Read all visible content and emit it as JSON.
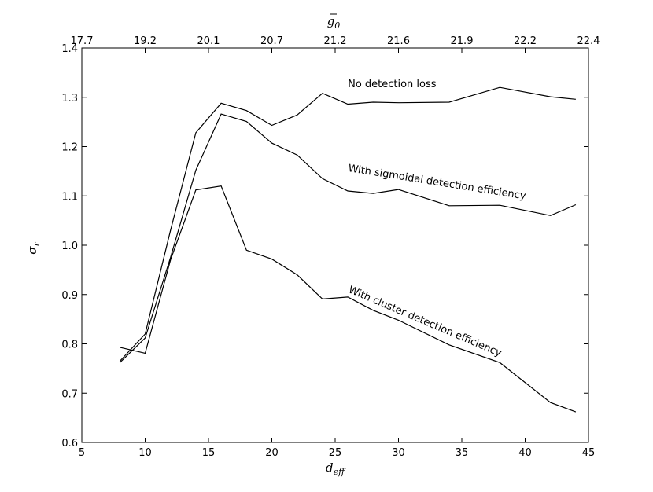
{
  "chart_data": {
    "type": "line",
    "xlabel": "d_eff",
    "ylabel": "σ_r",
    "top_xlabel": "ḡ_0",
    "xlim": [
      5,
      45
    ],
    "ylim": [
      0.6,
      1.4
    ],
    "x_ticks": [
      "5",
      "10",
      "15",
      "20",
      "25",
      "30",
      "35",
      "40",
      "45"
    ],
    "y_ticks": [
      "0.6",
      "0.7",
      "0.8",
      "0.9",
      "1.0",
      "1.1",
      "1.2",
      "1.3",
      "1.4"
    ],
    "top_ticks": [
      {
        "x": 5,
        "label": "17.7"
      },
      {
        "x": 10,
        "label": "19.2"
      },
      {
        "x": 15,
        "label": "20.1"
      },
      {
        "x": 20,
        "label": "20.7"
      },
      {
        "x": 25,
        "label": "21.2"
      },
      {
        "x": 30,
        "label": "21.6"
      },
      {
        "x": 35,
        "label": "21.9"
      },
      {
        "x": 40,
        "label": "22.2"
      },
      {
        "x": 45,
        "label": "22.4"
      }
    ],
    "series": [
      {
        "x": [
          8,
          10,
          12,
          14,
          16,
          18,
          20,
          22,
          24,
          26,
          28,
          30,
          34,
          38,
          42,
          44
        ],
        "values": [
          0.765,
          0.82,
          1.03,
          1.228,
          1.288,
          1.273,
          1.243,
          1.264,
          1.308,
          1.286,
          1.29,
          1.289,
          1.29,
          1.32,
          1.301,
          1.296
        ]
      },
      {
        "x": [
          8,
          10,
          12,
          14,
          16,
          18,
          20,
          22,
          24,
          26,
          28,
          30,
          34,
          38,
          42,
          44
        ],
        "values": [
          0.762,
          0.812,
          0.975,
          1.152,
          1.266,
          1.251,
          1.207,
          1.183,
          1.135,
          1.11,
          1.105,
          1.113,
          1.08,
          1.081,
          1.06,
          1.082
        ]
      },
      {
        "x": [
          8,
          10,
          12,
          14,
          16,
          18,
          20,
          22,
          24,
          26,
          28,
          30,
          34,
          38,
          42,
          44
        ],
        "values": [
          0.793,
          0.781,
          0.97,
          1.112,
          1.12,
          0.99,
          0.972,
          0.94,
          0.891,
          0.895,
          0.868,
          0.848,
          0.798,
          0.762,
          0.681,
          0.662
        ]
      }
    ],
    "annotations": [
      {
        "text": "No detection loss",
        "x": 26,
        "y": 1.32,
        "rotation": 0
      },
      {
        "text": "With sigmoidal detection efficiency",
        "x": 26,
        "y": 1.15,
        "rotation": 9
      },
      {
        "text": "With cluster detection efficiency",
        "x": 26,
        "y": 0.905,
        "rotation": 23
      }
    ]
  }
}
